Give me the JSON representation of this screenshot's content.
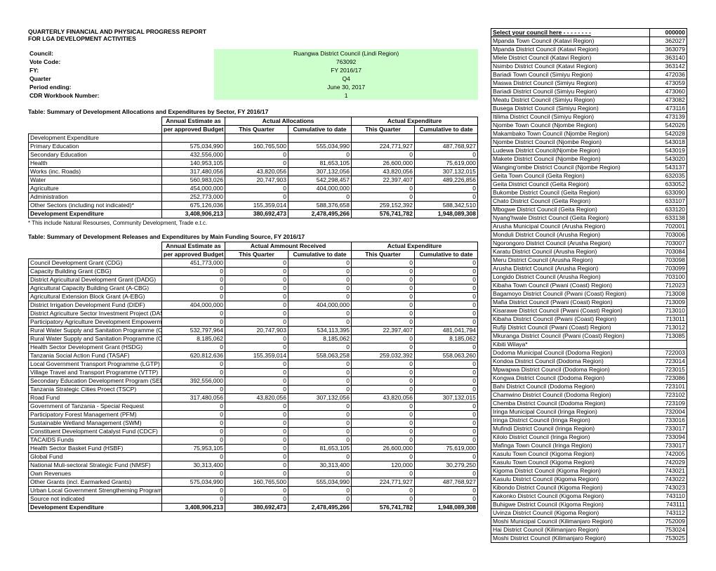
{
  "title1": "QUARTERLY FINANCIAL AND PHYSICAL PROGRESS REPORT",
  "title2": "FOR LGA DEVELOPMENT ACTIVITIES",
  "meta": {
    "council_label": "Council:",
    "council_value": "Ruangwa District Council (Lindi Region)",
    "vote_label": "Vote Code:",
    "vote_value": "763092",
    "fy_label": "FY:",
    "fy_value": "FY 2016/17",
    "quarter_label": "Quarter",
    "quarter_value": "Q4",
    "period_label": "Period ending:",
    "period_value": "June 30, 2017",
    "cdr_label": "CDR Workbook Number:",
    "cdr_value": "1"
  },
  "table1": {
    "title": "Table: Summary of Development Allocations and Expenditures by Sector, FY 2016/17",
    "h_est": "Annual Estimate as",
    "h_est2": "per approved Budget",
    "h_alloc": "Actual Allocations",
    "h_exp": "Actual Expenditure",
    "h_tq": "This Quarter",
    "h_ctd": "Cumulative to date",
    "rows": [
      {
        "label": "Development Expenditure",
        "est": "",
        "tq1": "",
        "ctd1": "",
        "tq2": "",
        "ctd2": ""
      },
      {
        "label": "Primary Education",
        "est": "575,034,990",
        "tq1": "160,765,500",
        "ctd1": "555,034,990",
        "tq2": "224,771,927",
        "ctd2": "487,768,927"
      },
      {
        "label": "Secondary Education",
        "est": "432,556,000",
        "tq1": "0",
        "ctd1": "0",
        "tq2": "0",
        "ctd2": "0"
      },
      {
        "label": "Health",
        "est": "140,953,105",
        "tq1": "0",
        "ctd1": "81,653,105",
        "tq2": "26,600,000",
        "ctd2": "75,619,000"
      },
      {
        "label": "Works (inc. Roads)",
        "est": "317,480,056",
        "tq1": "43,820,056",
        "ctd1": "307,132,056",
        "tq2": "43,820,056",
        "ctd2": "307,132,015"
      },
      {
        "label": "Water",
        "est": "560,983,026",
        "tq1": "20,747,903",
        "ctd1": "542,298,457",
        "tq2": "22,397,407",
        "ctd2": "489,226,856"
      },
      {
        "label": "Agriculture",
        "est": "454,000,000",
        "tq1": "0",
        "ctd1": "404,000,000",
        "tq2": "0",
        "ctd2": "0"
      },
      {
        "label": "Administration",
        "est": "252,773,000",
        "tq1": "0",
        "ctd1": "0",
        "tq2": "0",
        "ctd2": "0"
      },
      {
        "label": "Other Sectors (including not indicated)*",
        "est": "675,126,036",
        "tq1": "155,359,014",
        "ctd1": "588,376,658",
        "tq2": "259,152,392",
        "ctd2": "588,342,510"
      }
    ],
    "total": {
      "label": "Development Expenditure",
      "est": "3,408,906,213",
      "tq1": "380,692,473",
      "ctd1": "2,478,495,266",
      "tq2": "576,741,782",
      "ctd2": "1,948,089,308"
    },
    "footnote": "* This include Natural Resourses, Community Development, Trade e.t.c."
  },
  "table2": {
    "title": "Table: Summary of Development Releases and Expenditures by Main Funding Source, FY 2016/17",
    "h_est": "Annual Estimate as",
    "h_est2": "per approved Budget",
    "h_alloc": "Actual Ammount Received",
    "h_exp": "Actual Expenditure",
    "h_tq": "This Quarter",
    "h_ctd": "Cumulative to date",
    "rows": [
      {
        "label": "Council Development Grant (CDG)",
        "est": "451,773,000",
        "tq1": "0",
        "ctd1": "0",
        "tq2": "0",
        "ctd2": "0"
      },
      {
        "label": "Capacity Building Grant (CBG)",
        "est": "0",
        "tq1": "0",
        "ctd1": "0",
        "tq2": "0",
        "ctd2": "0"
      },
      {
        "label": "District Agricultural Development Grant (DADG)",
        "est": "0",
        "tq1": "0",
        "ctd1": "0",
        "tq2": "0",
        "ctd2": "0"
      },
      {
        "label": "Agricultural Capacity Building Grant (A-CBG)",
        "est": "0",
        "tq1": "0",
        "ctd1": "0",
        "tq2": "0",
        "ctd2": "0"
      },
      {
        "label": "Agricultural Extension Block Grant (A-EBG)",
        "est": "0",
        "tq1": "0",
        "ctd1": "0",
        "tq2": "0",
        "ctd2": "0"
      },
      {
        "label": "District Irrigation Development Fund (DIDF)",
        "est": "404,000,000",
        "tq1": "0",
        "ctd1": "404,000,000",
        "tq2": "0",
        "ctd2": "0"
      },
      {
        "label": "District Agriculture Sector Investment Project (DASIP)",
        "est": "0",
        "tq1": "0",
        "ctd1": "0",
        "tq2": "0",
        "ctd2": "0"
      },
      {
        "label": "Participatory Agriculture Development Empowerment Project (PADEP)",
        "est": "0",
        "tq1": "0",
        "ctd1": "0",
        "tq2": "0",
        "ctd2": "0"
      },
      {
        "label": "Rural Water Supply and Sanitation Programme (CDG)",
        "est": "532,797,964",
        "tq1": "20,747,903",
        "ctd1": "534,113,395",
        "tq2": "22,397,407",
        "ctd2": "481,041,794"
      },
      {
        "label": "Rural Water Supply and Sanitation Programme (CBG)",
        "est": "8,185,062",
        "tq1": "0",
        "ctd1": "8,185,062",
        "tq2": "0",
        "ctd2": "8,185,062"
      },
      {
        "label": "Health Sector Development Grant (HSDG)",
        "est": "0",
        "tq1": "0",
        "ctd1": "0",
        "tq2": "0",
        "ctd2": "0"
      },
      {
        "label": "Tanzania Social Action Fund (TASAF)",
        "est": "620,812,636",
        "tq1": "155,359,014",
        "ctd1": "558,063,258",
        "tq2": "259,032,392",
        "ctd2": "558,063,260"
      },
      {
        "label": "Local Government Transport Programme (LGTP)",
        "est": "0",
        "tq1": "0",
        "ctd1": "0",
        "tq2": "0",
        "ctd2": "0"
      },
      {
        "label": "Village Travel and Transport Programme (VTTP)",
        "est": "0",
        "tq1": "0",
        "ctd1": "0",
        "tq2": "0",
        "ctd2": "0"
      },
      {
        "label": "Secondary Education Development Program (SEDP)",
        "est": "392,556,000",
        "tq1": "0",
        "ctd1": "0",
        "tq2": "0",
        "ctd2": "0"
      },
      {
        "label": "Tanzania Strategic Cities Proect (TSCP)",
        "est": "0",
        "tq1": "0",
        "ctd1": "0",
        "tq2": "0",
        "ctd2": "0"
      },
      {
        "label": "Road Fund",
        "est": "317,480,056",
        "tq1": "43,820,056",
        "ctd1": "307,132,056",
        "tq2": "43,820,056",
        "ctd2": "307,132,015"
      },
      {
        "label": "Government of Tanzania - Special Request",
        "est": "0",
        "tq1": "0",
        "ctd1": "0",
        "tq2": "0",
        "ctd2": "0"
      },
      {
        "label": "Participatory Forest Management (PFM)",
        "est": "0",
        "tq1": "0",
        "ctd1": "0",
        "tq2": "0",
        "ctd2": "0"
      },
      {
        "label": "Sustainable Wetland Management (SWM)",
        "est": "0",
        "tq1": "0",
        "ctd1": "0",
        "tq2": "0",
        "ctd2": "0"
      },
      {
        "label": "Constituent Development Catalyst Fund (CDCF)",
        "est": "0",
        "tq1": "0",
        "ctd1": "0",
        "tq2": "0",
        "ctd2": "0"
      },
      {
        "label": "TACAIDS Funds",
        "est": "0",
        "tq1": "0",
        "ctd1": "0",
        "tq2": "0",
        "ctd2": "0"
      },
      {
        "label": "Health Sector Basket Fund (HSBF)",
        "est": "75,953,105",
        "tq1": "0",
        "ctd1": "81,653,105",
        "tq2": "26,600,000",
        "ctd2": "75,619,000"
      },
      {
        "label": "Global Fund",
        "est": "0",
        "tq1": "0",
        "ctd1": "0",
        "tq2": "0",
        "ctd2": "0"
      },
      {
        "label": "National Muli-sectoral Strategic Fund (NMSF)",
        "est": "30,313,400",
        "tq1": "0",
        "ctd1": "30,313,400",
        "tq2": "120,000",
        "ctd2": "30,279,250"
      },
      {
        "label": "Own Revenues",
        "est": "0",
        "tq1": "0",
        "ctd1": "0",
        "tq2": "0",
        "ctd2": "0"
      },
      {
        "label": "Other Grants (incl. Earmarked Grants)",
        "est": "575,034,990",
        "tq1": "160,765,500",
        "ctd1": "555,034,990",
        "tq2": "224,771,927",
        "ctd2": "487,768,927"
      },
      {
        "label": "Urban Local Government Strengtherning Programme (ULGSP)",
        "est": "0",
        "tq1": "0",
        "ctd1": "0",
        "tq2": "0",
        "ctd2": "0"
      },
      {
        "label": "Source not indicated",
        "est": "0",
        "tq1": "0",
        "ctd1": "0",
        "tq2": "0",
        "ctd2": "0"
      }
    ],
    "total": {
      "label": "Development Expenditure",
      "est": "3,408,906,213",
      "tq1": "380,692,473",
      "ctd1": "2,478,495,266",
      "tq2": "576,741,782",
      "ctd2": "1,948,089,308"
    }
  },
  "councilList": {
    "header_name": "Select your council here - - - - - - - -",
    "header_code": "000000",
    "items": [
      {
        "name": "Mpanda Town Council (Katavi Region)",
        "code": "362027"
      },
      {
        "name": "Mpanda District Council (Katavi  Region)",
        "code": "363079"
      },
      {
        "name": "Mlele District Council (Katavi Region)",
        "code": "363140"
      },
      {
        "name": "Nsimbo District Council (Katavi Region)",
        "code": "363142"
      },
      {
        "name": "Bariadi Town Council (Simiyu Region)",
        "code": "472036"
      },
      {
        "name": "Maswa District Council (Simiyu Region)",
        "code": "473059"
      },
      {
        "name": "Bariadi District Council (Simiyu Region)",
        "code": "473060"
      },
      {
        "name": "Meatu District Council (Simiyu Region)",
        "code": "473082"
      },
      {
        "name": "Busega District Council (Simiyu Region)",
        "code": "473116"
      },
      {
        "name": "Itilima District Council (Simiyu Region)",
        "code": "473139"
      },
      {
        "name": "Njombe Town Council (Njombe Region)",
        "code": "542026"
      },
      {
        "name": "Makambako Town Council (Njombe Region)",
        "code": "542028"
      },
      {
        "name": "Njombe District Council (Njombe Region)",
        "code": "543018"
      },
      {
        "name": "Ludewa District Council(Njombe Region)",
        "code": "543019"
      },
      {
        "name": "Makete District Council (Njombe Region)",
        "code": "543020"
      },
      {
        "name": "Wanging'ombe District Council (Njombe Region)",
        "code": "543137"
      },
      {
        "name": "Geita  Town Council (Geita Region)",
        "code": "632035"
      },
      {
        "name": "Geita District Council (Geita Region)",
        "code": "633052"
      },
      {
        "name": "Bukombe District Council (Geita  Region)",
        "code": "633090"
      },
      {
        "name": "Chato District Council (Geita Region)",
        "code": "633107"
      },
      {
        "name": "Mbogwe District Council (Geita  Region)",
        "code": "633120"
      },
      {
        "name": "Nyang'hwale District Council (Geita  Region)",
        "code": "633138"
      },
      {
        "name": "Arusha Municipal Council (Arusha Region)",
        "code": "702001"
      },
      {
        "name": "Monduli District Council (Arusha Region)",
        "code": "703006"
      },
      {
        "name": "Ngorongoro District Council (Arusha Region)",
        "code": "703007"
      },
      {
        "name": "Karatu District Council (Arusha Region)",
        "code": "703084"
      },
      {
        "name": "Meru District Council (Arusha Region)",
        "code": "703098"
      },
      {
        "name": "Arusha District Council (Arusha Region)",
        "code": "703099"
      },
      {
        "name": "Longido District Council (Arusha Region)",
        "code": "703100"
      },
      {
        "name": "Kibaha Town Council (Pwani (Coast) Region)",
        "code": "712023"
      },
      {
        "name": "Bagamoyo District Council (Pwani (Coast) Region)",
        "code": "713008"
      },
      {
        "name": "Mafia District Council (Pwani (Coast) Region)",
        "code": "713009"
      },
      {
        "name": "Kisarawe District Council (Pwani (Coast) Region)",
        "code": "713010"
      },
      {
        "name": "Kibaha District Council (Pwani (Coast) Region)",
        "code": "713011"
      },
      {
        "name": "Rufiji District Council (Pwani (Coast) Region)",
        "code": "713012"
      },
      {
        "name": "Mkuranga District Council (Pwani (Coast) Region)",
        "code": "713085"
      },
      {
        "name": "Kibiti Wilaya*",
        "code": ""
      },
      {
        "name": "Dodoma Municipal Council (Dodoma Region)",
        "code": "722003"
      },
      {
        "name": "Kondoa District Council (Dodoma Region)",
        "code": "723014"
      },
      {
        "name": "Mpwapwa District Council (Dodoma Region)",
        "code": "723015"
      },
      {
        "name": "Kongwa District Council (Dodoma Region)",
        "code": "723086"
      },
      {
        "name": "Bahi District Council (Dodoma Region)",
        "code": "723101"
      },
      {
        "name": "Chamwino District Council (Dodoma Region)",
        "code": "723102"
      },
      {
        "name": "Chemba District Council (Dodoma Region)",
        "code": "723109"
      },
      {
        "name": "Iringa Municipal Council (Iringa Region)",
        "code": "732004"
      },
      {
        "name": "Iringa District Council (Iringa Region)",
        "code": "733016"
      },
      {
        "name": "Mufindi District Council (Iringa Region)",
        "code": "733017"
      },
      {
        "name": "Kilolo District Council (Iringa Region)",
        "code": "733094"
      },
      {
        "name": "Mafinga Town Council  (Iringa Region)",
        "code": "733017"
      },
      {
        "name": "Kasulu Town Council (Kigoma Region)",
        "code": "742005"
      },
      {
        "name": "Kasulu Town Council (Kigoma Region)",
        "code": "742029"
      },
      {
        "name": "Kigoma District Council (Kigoma Region)",
        "code": "743021"
      },
      {
        "name": "Kasulu District Council (Kigoma Region)",
        "code": "743022"
      },
      {
        "name": "Kibondo District Council (Kigoma Region)",
        "code": "743023"
      },
      {
        "name": "Kakonko District Council (Kigoma Region)",
        "code": "743110"
      },
      {
        "name": "Buhigwe District Council (Kigoma Region)",
        "code": "743111"
      },
      {
        "name": "Uvinza District Council (Kigoma Region)",
        "code": "743112"
      },
      {
        "name": "Moshi Municipal Council (Kilimanjaro Region)",
        "code": "752009"
      },
      {
        "name": "Hai District Council (Kilimanjaro Region)",
        "code": "753024"
      },
      {
        "name": "Moshi District Council (Kilimanjaro Region)",
        "code": "753025"
      }
    ]
  },
  "style": {
    "meta_bg": "#ccffcc",
    "border_color": "#000000",
    "font_family": "Arial",
    "base_font_size_pt": 6.5
  }
}
